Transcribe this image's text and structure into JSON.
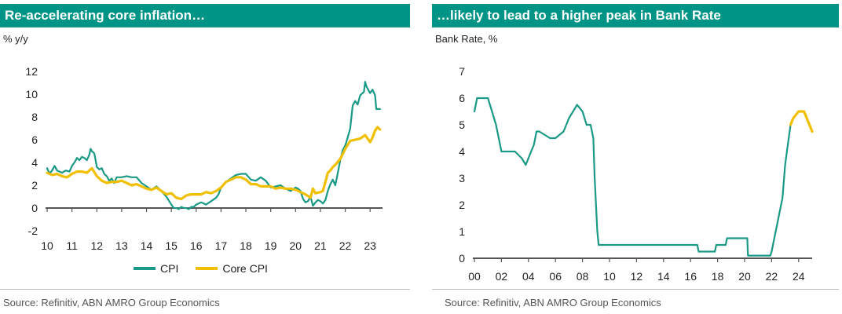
{
  "colors": {
    "title_bg": "#009486",
    "cpi": "#1a9a86",
    "core": "#f0c000",
    "axis": "#555555"
  },
  "left": {
    "title": "Re-accelerating core inflation…",
    "unit": "% y/y",
    "source": "Source: Refinitiv, ABN AMRO Group Economics"
  },
  "right": {
    "title": "…likely to lead to a higher peak in Bank Rate",
    "unit": "Bank Rate, %",
    "source": "Source: Refinitiv, ABN AMRO Group Economics"
  },
  "chart_data": [
    {
      "type": "line",
      "title": "Re-accelerating core inflation…",
      "ylabel": "% y/y",
      "xlim": [
        2010,
        2023.5
      ],
      "ylim": [
        -2,
        12
      ],
      "x_ticks": [
        10,
        11,
        12,
        13,
        14,
        15,
        16,
        17,
        18,
        19,
        20,
        21,
        22,
        23
      ],
      "x_tick_labels": [
        "10",
        "11",
        "12",
        "13",
        "14",
        "15",
        "16",
        "17",
        "18",
        "19",
        "20",
        "21",
        "22",
        "23"
      ],
      "y_ticks": [
        -2,
        0,
        2,
        4,
        6,
        8,
        10,
        12
      ],
      "y_tick_labels": [
        "-2",
        "0",
        "2",
        "4",
        "6",
        "8",
        "10",
        "12"
      ],
      "legend": "bottom",
      "series": [
        {
          "name": "CPI",
          "color": "#1a9a86",
          "x": [
            2010.0,
            2010.1,
            2010.2,
            2010.3,
            2010.4,
            2010.5,
            2010.6,
            2010.75,
            2010.9,
            2011.0,
            2011.1,
            2011.2,
            2011.3,
            2011.4,
            2011.5,
            2011.6,
            2011.7,
            2011.75,
            2011.8,
            2011.9,
            2012.0,
            2012.1,
            2012.2,
            2012.3,
            2012.4,
            2012.5,
            2012.6,
            2012.7,
            2012.8,
            2012.9,
            2013.0,
            2013.2,
            2013.4,
            2013.6,
            2013.8,
            2014.0,
            2014.2,
            2014.4,
            2014.6,
            2014.8,
            2015.0,
            2015.1,
            2015.2,
            2015.3,
            2015.4,
            2015.5,
            2015.6,
            2015.7,
            2015.8,
            2015.9,
            2016.0,
            2016.2,
            2016.4,
            2016.6,
            2016.8,
            2016.9,
            2017.0,
            2017.2,
            2017.4,
            2017.6,
            2017.8,
            2018.0,
            2018.2,
            2018.4,
            2018.6,
            2018.8,
            2019.0,
            2019.2,
            2019.4,
            2019.6,
            2019.8,
            2020.0,
            2020.1,
            2020.2,
            2020.3,
            2020.4,
            2020.5,
            2020.6,
            2020.7,
            2020.8,
            2020.9,
            2021.0,
            2021.1,
            2021.2,
            2021.3,
            2021.4,
            2021.5,
            2021.6,
            2021.7,
            2021.8,
            2021.9,
            2022.0,
            2022.1,
            2022.2,
            2022.3,
            2022.4,
            2022.5,
            2022.6,
            2022.7,
            2022.75,
            2022.8,
            2022.85,
            2022.9,
            2023.0,
            2023.1,
            2023.2,
            2023.25,
            2023.3,
            2023.4
          ],
          "values": [
            3.5,
            3.0,
            3.3,
            3.7,
            3.3,
            3.2,
            3.1,
            3.3,
            3.2,
            3.7,
            4.0,
            4.4,
            4.2,
            4.5,
            4.4,
            4.2,
            4.7,
            5.2,
            5.0,
            4.8,
            3.6,
            3.4,
            3.5,
            3.0,
            2.8,
            2.4,
            2.6,
            2.2,
            2.7,
            2.7,
            2.7,
            2.8,
            2.7,
            2.7,
            2.2,
            1.9,
            1.6,
            1.9,
            1.5,
            1.0,
            0.3,
            0.0,
            0.0,
            -0.1,
            0.1,
            0.0,
            0.0,
            -0.1,
            0.1,
            0.1,
            0.3,
            0.5,
            0.3,
            0.6,
            0.9,
            1.2,
            1.8,
            2.3,
            2.6,
            2.9,
            3.0,
            3.0,
            2.5,
            2.4,
            2.7,
            2.4,
            1.8,
            1.9,
            2.0,
            1.7,
            1.5,
            1.8,
            1.7,
            1.5,
            0.8,
            0.5,
            0.6,
            1.0,
            0.2,
            0.5,
            0.7,
            0.6,
            0.4,
            0.7,
            1.5,
            2.1,
            2.5,
            2.0,
            3.1,
            4.2,
            5.1,
            5.5,
            6.2,
            7.0,
            9.0,
            9.4,
            9.1,
            9.9,
            10.1,
            10.2,
            11.1,
            10.7,
            10.5,
            10.1,
            10.4,
            9.9,
            8.7,
            8.7,
            8.7
          ]
        },
        {
          "name": "Core CPI",
          "color": "#f0c000",
          "x": [
            2010.0,
            2010.2,
            2010.4,
            2010.6,
            2010.8,
            2011.0,
            2011.2,
            2011.4,
            2011.6,
            2011.8,
            2012.0,
            2012.2,
            2012.4,
            2012.6,
            2012.8,
            2013.0,
            2013.2,
            2013.4,
            2013.6,
            2013.8,
            2014.0,
            2014.2,
            2014.4,
            2014.6,
            2014.8,
            2015.0,
            2015.2,
            2015.4,
            2015.6,
            2015.8,
            2016.0,
            2016.2,
            2016.4,
            2016.6,
            2016.8,
            2017.0,
            2017.2,
            2017.4,
            2017.6,
            2017.8,
            2018.0,
            2018.2,
            2018.4,
            2018.6,
            2018.8,
            2019.0,
            2019.2,
            2019.4,
            2019.6,
            2019.8,
            2020.0,
            2020.2,
            2020.4,
            2020.6,
            2020.7,
            2020.8,
            2021.0,
            2021.1,
            2021.2,
            2021.3,
            2021.4,
            2021.5,
            2021.6,
            2021.8,
            2022.0,
            2022.2,
            2022.4,
            2022.6,
            2022.8,
            2023.0,
            2023.1,
            2023.2,
            2023.3,
            2023.4
          ],
          "values": [
            3.1,
            2.9,
            3.0,
            2.8,
            2.7,
            3.0,
            3.2,
            3.2,
            3.1,
            3.5,
            2.8,
            2.4,
            2.2,
            2.3,
            2.3,
            2.4,
            2.2,
            2.0,
            2.1,
            1.9,
            1.7,
            1.6,
            1.8,
            1.5,
            1.2,
            1.3,
            0.9,
            0.8,
            1.1,
            1.2,
            1.2,
            1.2,
            1.4,
            1.3,
            1.5,
            1.8,
            2.3,
            2.5,
            2.7,
            2.7,
            2.5,
            2.1,
            2.1,
            1.9,
            1.9,
            1.9,
            1.7,
            1.8,
            1.7,
            1.7,
            1.6,
            1.4,
            1.2,
            0.9,
            1.7,
            1.3,
            1.4,
            1.5,
            2.3,
            3.1,
            3.3,
            3.6,
            3.8,
            4.3,
            5.2,
            5.9,
            6.0,
            6.1,
            6.4,
            5.8,
            6.2,
            6.8,
            7.1,
            6.9
          ]
        }
      ]
    },
    {
      "type": "line",
      "title": "…likely to lead to a higher peak in Bank Rate",
      "ylabel": "Bank Rate, %",
      "xlim": [
        2000,
        2025
      ],
      "ylim": [
        0,
        7
      ],
      "x_ticks": [
        0,
        2,
        4,
        6,
        8,
        10,
        12,
        14,
        16,
        18,
        20,
        22,
        24
      ],
      "x_tick_labels": [
        "00",
        "02",
        "04",
        "06",
        "08",
        "10",
        "12",
        "14",
        "16",
        "18",
        "20",
        "22",
        "24"
      ],
      "y_ticks": [
        0,
        1,
        2,
        3,
        4,
        5,
        6,
        7
      ],
      "y_tick_labels": [
        "0",
        "1",
        "2",
        "3",
        "4",
        "5",
        "6",
        "7"
      ],
      "series": [
        {
          "color": "#1a9a86",
          "x": [
            2000.0,
            2000.2,
            2000.5,
            2001.0,
            2001.3,
            2001.6,
            2001.8,
            2002.0,
            2003.0,
            2003.5,
            2003.8,
            2004.0,
            2004.2,
            2004.4,
            2004.6,
            2004.8,
            2005.6,
            2006.0,
            2006.6,
            2006.8,
            2007.0,
            2007.3,
            2007.6,
            2008.0,
            2008.3,
            2008.6,
            2008.8,
            2008.9,
            2009.0,
            2009.1,
            2009.2,
            2016.5,
            2016.6,
            2017.8,
            2017.9,
            2018.6,
            2018.7,
            2020.2,
            2020.25,
            2021.9,
            2022.0,
            2022.2,
            2022.4,
            2022.6,
            2022.8,
            2023.0,
            2023.2,
            2023.4
          ],
          "values": [
            5.5,
            6.0,
            6.0,
            6.0,
            5.5,
            5.0,
            4.5,
            4.0,
            4.0,
            3.75,
            3.5,
            3.75,
            4.0,
            4.25,
            4.75,
            4.75,
            4.5,
            4.5,
            4.75,
            5.0,
            5.25,
            5.5,
            5.75,
            5.5,
            5.0,
            5.0,
            4.5,
            3.0,
            2.0,
            1.0,
            0.5,
            0.5,
            0.25,
            0.25,
            0.5,
            0.5,
            0.75,
            0.75,
            0.1,
            0.1,
            0.25,
            0.75,
            1.25,
            1.75,
            2.25,
            3.5,
            4.25,
            5.0
          ]
        },
        {
          "color": "#f0c000",
          "x": [
            2023.4,
            2023.6,
            2024.0,
            2024.2,
            2024.4,
            2024.6,
            2024.8,
            2025.0
          ],
          "values": [
            5.0,
            5.25,
            5.5,
            5.5,
            5.5,
            5.25,
            5.0,
            4.75
          ]
        }
      ]
    }
  ]
}
